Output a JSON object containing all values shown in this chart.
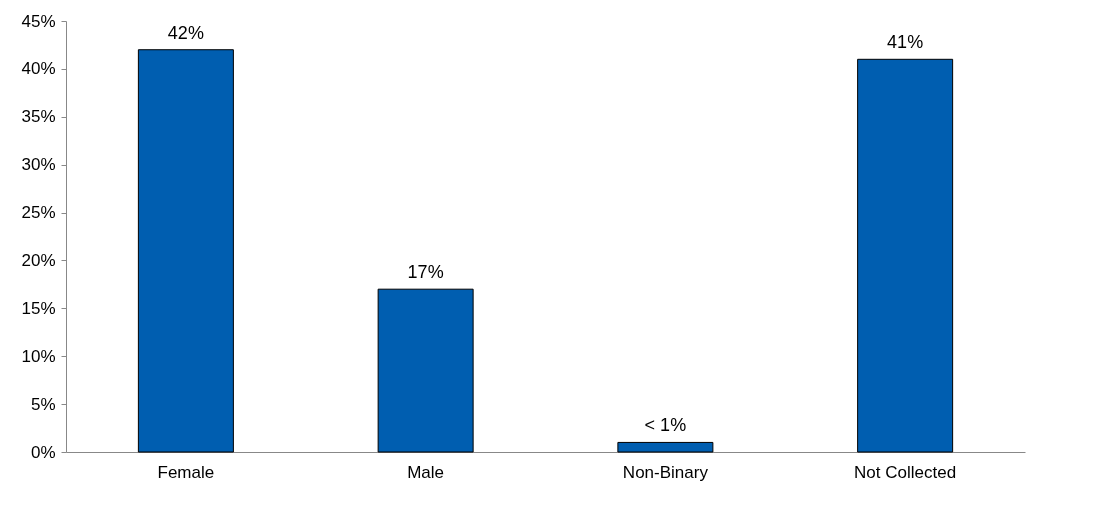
{
  "chart_data": {
    "type": "bar",
    "categories": [
      "Female",
      "Male",
      "Non-Binary",
      "Not Collected"
    ],
    "values": [
      42,
      17,
      1,
      41
    ],
    "value_labels": [
      "42%",
      "17%",
      "< 1%",
      "41%"
    ],
    "color": "#005eb0",
    "ylim": [
      0,
      45
    ],
    "yticks": [
      {
        "value": 0,
        "label": "0%"
      },
      {
        "value": 5,
        "label": "5%"
      },
      {
        "value": 10,
        "label": "10%"
      },
      {
        "value": 15,
        "label": "15%"
      },
      {
        "value": 20,
        "label": "20%"
      },
      {
        "value": 25,
        "label": "25%"
      },
      {
        "value": 30,
        "label": "30%"
      },
      {
        "value": 35,
        "label": "35%"
      },
      {
        "value": 40,
        "label": "40%"
      },
      {
        "value": 45,
        "label": "45%"
      }
    ],
    "grid": false
  }
}
